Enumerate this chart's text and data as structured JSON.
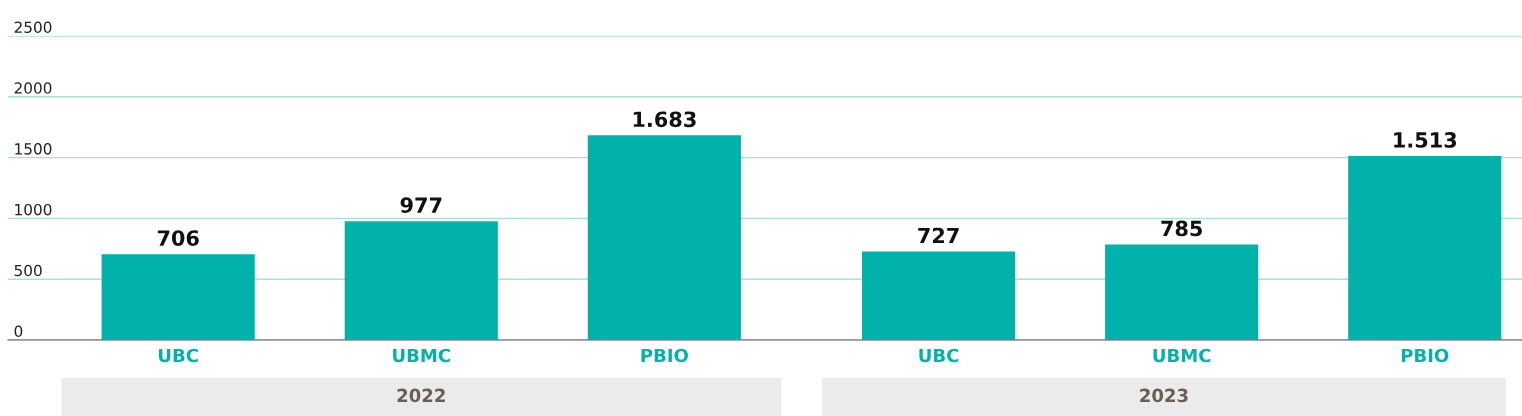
{
  "chart_data": {
    "type": "bar",
    "categories": [
      "UBC",
      "UBMC",
      "PBIO",
      "UBC",
      "UBMC",
      "PBIO"
    ],
    "values": [
      706,
      977,
      1683,
      727,
      785,
      1513
    ],
    "value_labels": [
      "706",
      "977",
      "1.683",
      "727",
      "785",
      "1.513"
    ],
    "color": "#00b2a9",
    "ylim": [
      0,
      2500
    ],
    "yticks": [
      0,
      500,
      1000,
      1500,
      2000,
      2500
    ],
    "grid": "y",
    "legend": false,
    "annotations": [
      "2022",
      "2023"
    ]
  }
}
